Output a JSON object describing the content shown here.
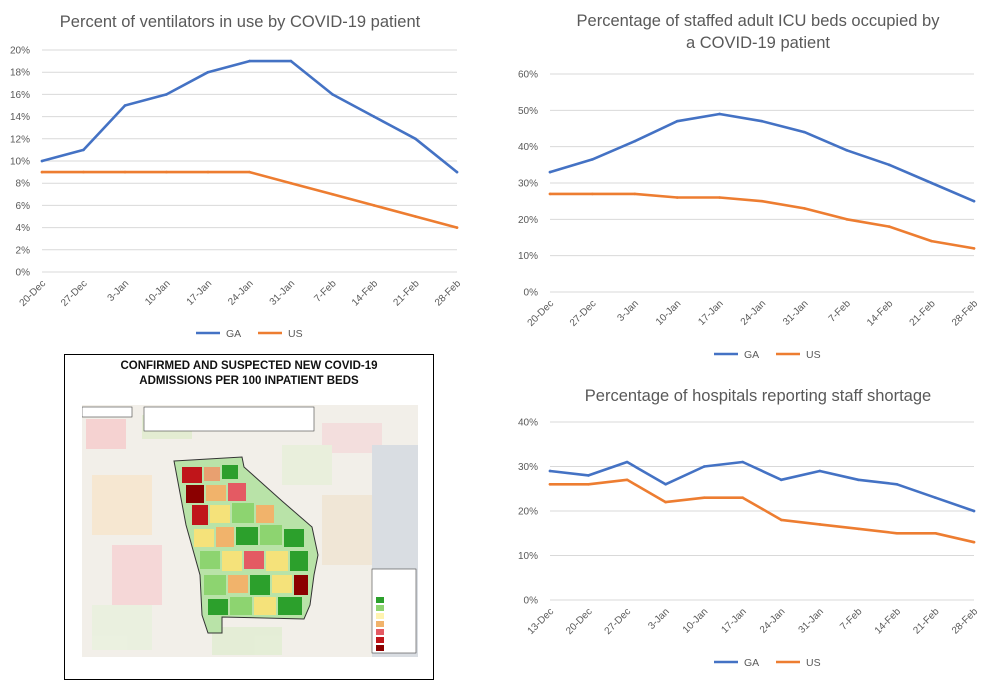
{
  "colors": {
    "GA": "#4472C4",
    "US": "#ED7D31",
    "grid": "#d9d9d9",
    "axis_text": "#595959"
  },
  "chart_data": [
    {
      "type": "line",
      "title": "Percent of ventilators in use by COVID-19 patient",
      "categories": [
        "20-Dec",
        "27-Dec",
        "3-Jan",
        "10-Jan",
        "17-Jan",
        "24-Jan",
        "31-Jan",
        "7-Feb",
        "14-Feb",
        "21-Feb",
        "28-Feb"
      ],
      "series": [
        {
          "name": "GA",
          "values": [
            10,
            11,
            15,
            16,
            18,
            19,
            19,
            16,
            14,
            12,
            9
          ]
        },
        {
          "name": "US",
          "values": [
            9,
            9,
            9,
            9,
            9,
            9,
            8,
            7,
            6,
            5,
            4
          ]
        }
      ],
      "ylim": [
        0,
        20
      ],
      "yticks": [
        0,
        2,
        4,
        6,
        8,
        10,
        12,
        14,
        16,
        18,
        20
      ],
      "ytick_labels": [
        "0%",
        "2%",
        "4%",
        "6%",
        "8%",
        "10%",
        "12%",
        "14%",
        "16%",
        "18%",
        "20%"
      ],
      "grid": true,
      "legend": "bottom"
    },
    {
      "type": "line",
      "title_lines": [
        "Percentage of staffed adult ICU beds occupied by",
        "a COVID-19 patient"
      ],
      "categories": [
        "20-Dec",
        "27-Dec",
        "3-Jan",
        "10-Jan",
        "17-Jan",
        "24-Jan",
        "31-Jan",
        "7-Feb",
        "14-Feb",
        "21-Feb",
        "28-Feb"
      ],
      "series": [
        {
          "name": "GA",
          "values": [
            33,
            36.5,
            41.5,
            47,
            49,
            47,
            44,
            39,
            35,
            30,
            25
          ]
        },
        {
          "name": "US",
          "values": [
            27,
            27,
            27,
            26,
            26,
            25,
            23,
            20,
            18,
            14,
            12
          ]
        }
      ],
      "ylim": [
        0,
        60
      ],
      "yticks": [
        0,
        10,
        20,
        30,
        40,
        50,
        60
      ],
      "ytick_labels": [
        "0%",
        "10%",
        "20%",
        "30%",
        "40%",
        "50%",
        "60%"
      ],
      "grid": true,
      "legend": "bottom"
    },
    {
      "type": "line",
      "title": "Percentage of hospitals reporting staff shortage",
      "categories": [
        "13-Dec",
        "20-Dec",
        "27-Dec",
        "3-Jan",
        "10-Jan",
        "17-Jan",
        "24-Jan",
        "31-Jan",
        "7-Feb",
        "14-Feb",
        "21-Feb",
        "28-Feb"
      ],
      "series": [
        {
          "name": "GA",
          "values": [
            29,
            28,
            31,
            26,
            30,
            31,
            27,
            29,
            27,
            26,
            23,
            20
          ]
        },
        {
          "name": "US",
          "values": [
            26,
            26,
            27,
            22,
            23,
            23,
            18,
            17,
            16,
            15,
            15,
            13
          ]
        }
      ],
      "ylim": [
        0,
        40
      ],
      "yticks": [
        0,
        10,
        20,
        30,
        40
      ],
      "ytick_labels": [
        "0%",
        "10%",
        "20%",
        "30%",
        "40%"
      ],
      "grid": true,
      "legend": "bottom"
    }
  ],
  "map": {
    "title_lines": [
      "CONFIRMED AND SUSPECTED NEW COVID-19",
      "ADMISSIONS PER 100 INPATIENT BEDS"
    ]
  }
}
